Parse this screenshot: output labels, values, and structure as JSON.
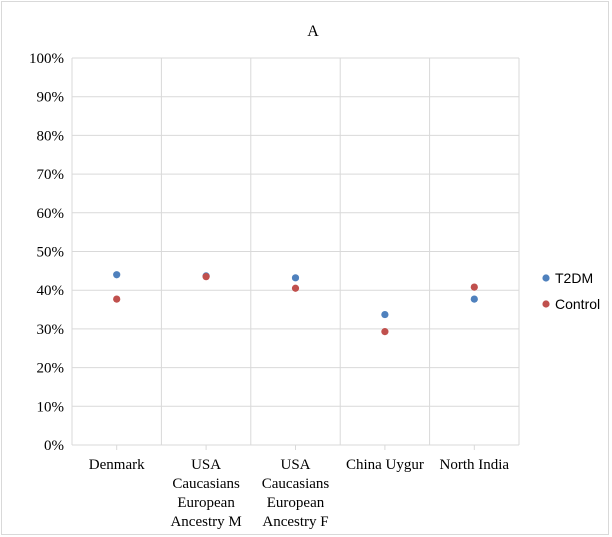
{
  "chart_data": {
    "type": "scatter",
    "title": "A",
    "xlabel": "",
    "ylabel": "",
    "categories": [
      [
        "Denmark"
      ],
      [
        "USA",
        "Caucasians",
        "European",
        "Ancestry M"
      ],
      [
        "USA",
        "Caucasians",
        "European",
        "Ancestry F"
      ],
      [
        "China Uygur"
      ],
      [
        "North India"
      ]
    ],
    "ylim": [
      0,
      1
    ],
    "y_ticks": [
      "0%",
      "10%",
      "20%",
      "30%",
      "40%",
      "50%",
      "60%",
      "70%",
      "80%",
      "90%",
      "100%"
    ],
    "grid": true,
    "legend_position": "right",
    "series": [
      {
        "name": "T2DM",
        "color": "#4f81bd",
        "values": [
          0.44,
          0.437,
          0.432,
          0.337,
          0.377
        ]
      },
      {
        "name": "Control",
        "color": "#c0504d",
        "values": [
          0.377,
          0.435,
          0.405,
          0.293,
          0.408
        ]
      }
    ]
  }
}
